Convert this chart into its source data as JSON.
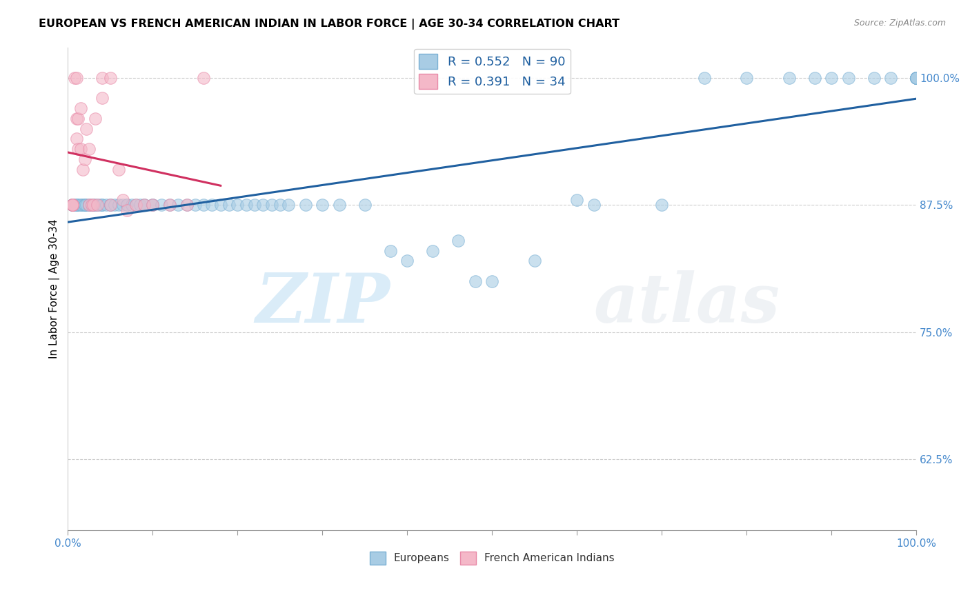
{
  "title": "EUROPEAN VS FRENCH AMERICAN INDIAN IN LABOR FORCE | AGE 30-34 CORRELATION CHART",
  "source": "Source: ZipAtlas.com",
  "ylabel": "In Labor Force | Age 30-34",
  "xlim": [
    0.0,
    1.0
  ],
  "ylim": [
    0.555,
    1.03
  ],
  "y_tick_vals": [
    0.625,
    0.75,
    0.875,
    1.0
  ],
  "y_tick_labels": [
    "62.5%",
    "75.0%",
    "87.5%",
    "100.0%"
  ],
  "blue_color": "#a8cce4",
  "blue_edge_color": "#7ab0d4",
  "pink_color": "#f4b8c8",
  "pink_edge_color": "#e88aa8",
  "blue_line_color": "#2060a0",
  "pink_line_color": "#d03060",
  "r_blue": 0.552,
  "n_blue": 90,
  "r_pink": 0.391,
  "n_pink": 34,
  "watermark_zip": "ZIP",
  "watermark_atlas": "atlas",
  "legend_label_blue": "Europeans",
  "legend_label_pink": "French American Indians",
  "blue_points_x": [
    0.005,
    0.005,
    0.005,
    0.005,
    0.005,
    0.005,
    0.01,
    0.01,
    0.01,
    0.012,
    0.015,
    0.015,
    0.018,
    0.02,
    0.02,
    0.02,
    0.022,
    0.025,
    0.025,
    0.028,
    0.03,
    0.03,
    0.032,
    0.035,
    0.038,
    0.04,
    0.04,
    0.045,
    0.05,
    0.05,
    0.055,
    0.06,
    0.065,
    0.07,
    0.07,
    0.075,
    0.08,
    0.085,
    0.09,
    0.09,
    0.1,
    0.1,
    0.11,
    0.12,
    0.13,
    0.14,
    0.15,
    0.16,
    0.17,
    0.18,
    0.19,
    0.2,
    0.21,
    0.22,
    0.23,
    0.24,
    0.25,
    0.26,
    0.28,
    0.3,
    0.32,
    0.35,
    0.38,
    0.4,
    0.43,
    0.46,
    0.48,
    0.5,
    0.55,
    0.6,
    0.62,
    0.7,
    0.75,
    0.8,
    0.85,
    0.88,
    0.9,
    0.92,
    0.95,
    0.97,
    1.0,
    1.0,
    1.0,
    1.0,
    1.0,
    1.0,
    1.0,
    1.0,
    1.0,
    1.0
  ],
  "blue_points_y": [
    0.875,
    0.875,
    0.875,
    0.875,
    0.875,
    0.875,
    0.875,
    0.875,
    0.875,
    0.875,
    0.875,
    0.875,
    0.875,
    0.875,
    0.875,
    0.875,
    0.875,
    0.875,
    0.875,
    0.875,
    0.875,
    0.875,
    0.875,
    0.875,
    0.875,
    0.875,
    0.875,
    0.875,
    0.875,
    0.875,
    0.875,
    0.875,
    0.875,
    0.875,
    0.875,
    0.875,
    0.875,
    0.875,
    0.875,
    0.875,
    0.875,
    0.875,
    0.875,
    0.875,
    0.875,
    0.875,
    0.875,
    0.875,
    0.875,
    0.875,
    0.875,
    0.875,
    0.875,
    0.875,
    0.875,
    0.875,
    0.875,
    0.875,
    0.875,
    0.875,
    0.875,
    0.875,
    0.83,
    0.82,
    0.83,
    0.84,
    0.8,
    0.8,
    0.82,
    0.88,
    0.875,
    0.875,
    1.0,
    1.0,
    1.0,
    1.0,
    1.0,
    1.0,
    1.0,
    1.0,
    1.0,
    1.0,
    1.0,
    1.0,
    1.0,
    1.0,
    1.0,
    1.0,
    1.0,
    1.0
  ],
  "pink_points_x": [
    0.005,
    0.005,
    0.005,
    0.005,
    0.008,
    0.01,
    0.01,
    0.01,
    0.012,
    0.012,
    0.015,
    0.015,
    0.018,
    0.02,
    0.022,
    0.025,
    0.025,
    0.028,
    0.03,
    0.032,
    0.035,
    0.04,
    0.04,
    0.05,
    0.05,
    0.06,
    0.065,
    0.07,
    0.08,
    0.09,
    0.1,
    0.12,
    0.14,
    0.16
  ],
  "pink_points_y": [
    0.875,
    0.875,
    0.875,
    0.875,
    1.0,
    1.0,
    0.96,
    0.94,
    0.93,
    0.96,
    0.97,
    0.93,
    0.91,
    0.92,
    0.95,
    0.93,
    0.875,
    0.875,
    0.875,
    0.96,
    0.875,
    0.98,
    1.0,
    1.0,
    0.875,
    0.91,
    0.88,
    0.87,
    0.875,
    0.875,
    0.875,
    0.875,
    0.875,
    1.0
  ]
}
